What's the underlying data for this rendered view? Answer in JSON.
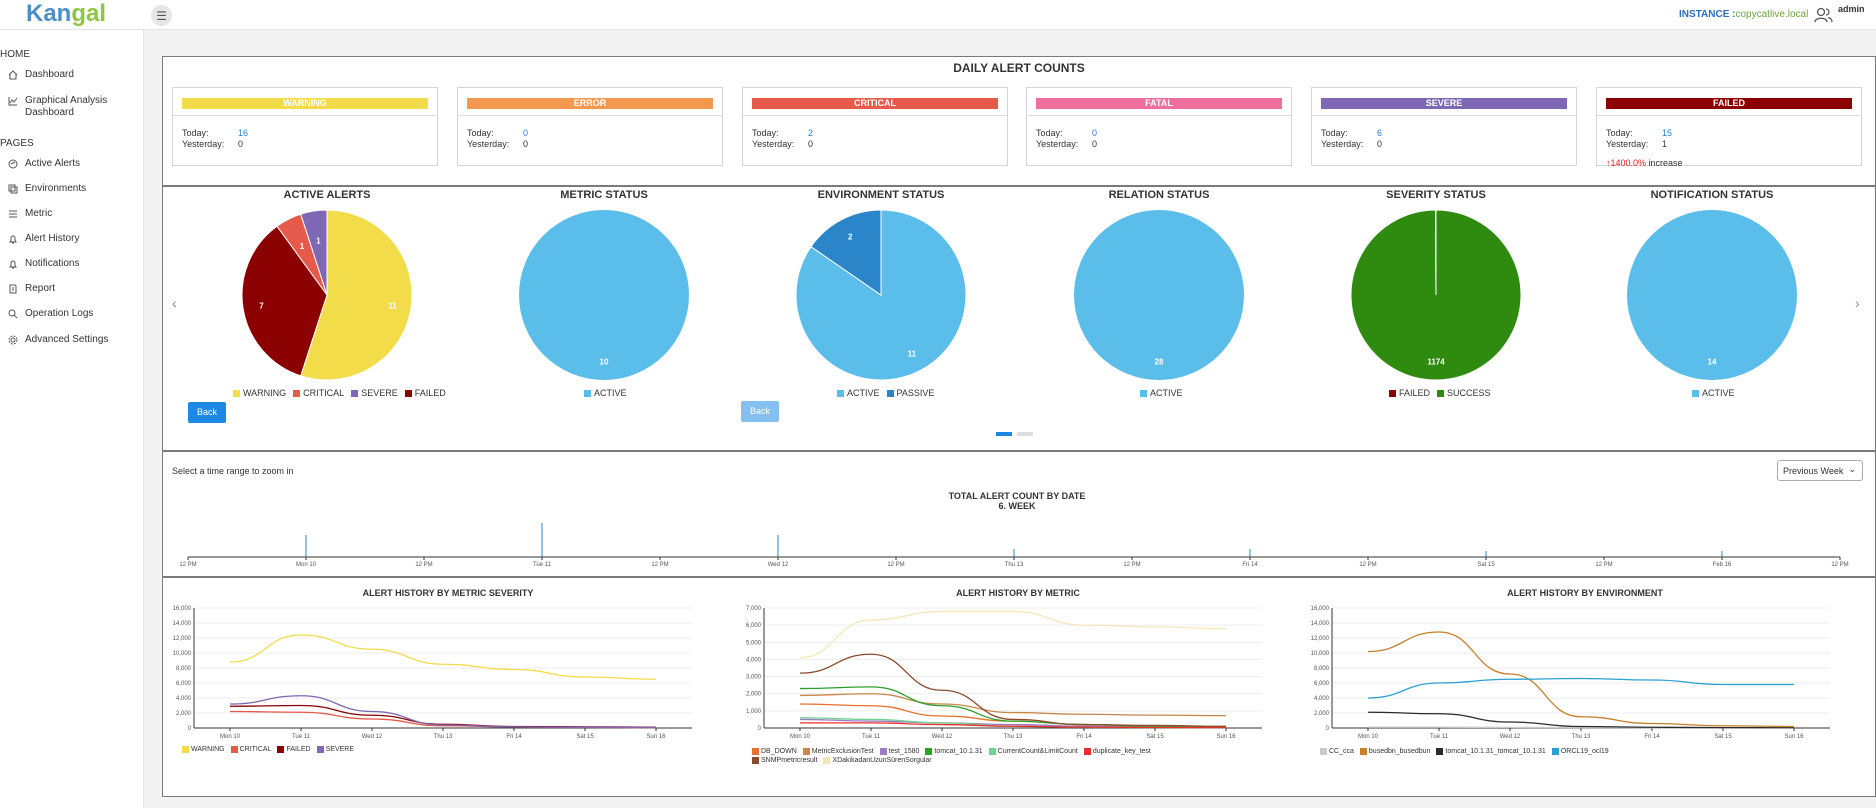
{
  "header": {
    "logo_a": "Kan",
    "logo_b": "gal",
    "instance_label": "INSTANCE :",
    "instance_value": "copycatlive.local",
    "user": "admin"
  },
  "sidebar": {
    "home_label": "HOME",
    "pages_label": "PAGES",
    "home_items": [
      {
        "label": "Dashboard",
        "icon": "home-icon"
      },
      {
        "label": "Graphical Analysis Dashboard",
        "icon": "chart-line-icon"
      }
    ],
    "page_items": [
      {
        "label": "Active Alerts",
        "icon": "alert-circle-icon"
      },
      {
        "label": "Environments",
        "icon": "server-icon"
      },
      {
        "label": "Metric",
        "icon": "metric-icon"
      },
      {
        "label": "Alert History",
        "icon": "bell-icon"
      },
      {
        "label": "Notifications",
        "icon": "notification-bell-icon"
      },
      {
        "label": "Report",
        "icon": "report-icon"
      },
      {
        "label": "Operation Logs",
        "icon": "search-icon"
      },
      {
        "label": "Advanced Settings",
        "icon": "gear-icon"
      }
    ]
  },
  "daily": {
    "title": "DAILY ALERT COUNTS",
    "today_label": "Today:",
    "yesterday_label": "Yesterday:",
    "cards": [
      {
        "name": "WARNING",
        "color": "#f3dc4a",
        "today": "16",
        "yesterday": "0"
      },
      {
        "name": "ERROR",
        "color": "#f5984f",
        "today": "0",
        "yesterday": "0"
      },
      {
        "name": "CRITICAL",
        "color": "#e55a4a",
        "today": "2",
        "yesterday": "0"
      },
      {
        "name": "FATAL",
        "color": "#f06e9c",
        "today": "0",
        "yesterday": "0"
      },
      {
        "name": "SEVERE",
        "color": "#7e68b5",
        "today": "6",
        "yesterday": "0"
      },
      {
        "name": "FAILED",
        "color": "#8b0000",
        "today": "15",
        "yesterday": "1",
        "increase_pct": "1400.0%",
        "increase_label": "increase"
      }
    ]
  },
  "status": {
    "back_label": "Back",
    "pies": [
      {
        "title": "ACTIVE ALERTS",
        "slices": [
          {
            "label": "WARNING",
            "value": 11,
            "color": "#f3dc4a"
          },
          {
            "label": "FAILED",
            "value": 7,
            "color": "#8b0000"
          },
          {
            "label": "CRITICAL",
            "value": 1,
            "color": "#e55a4a"
          },
          {
            "label": "SEVERE",
            "value": 1,
            "color": "#7e68b5"
          }
        ],
        "legend": [
          {
            "label": "WARNING",
            "color": "#f3dc4a"
          },
          {
            "label": "CRITICAL",
            "color": "#e55a4a"
          },
          {
            "label": "SEVERE",
            "color": "#7e68b5"
          },
          {
            "label": "FAILED",
            "color": "#8b0000"
          }
        ]
      },
      {
        "title": "METRIC STATUS",
        "slices": [
          {
            "label": "ACTIVE",
            "value": 10,
            "color": "#5bbdea"
          }
        ],
        "legend": [
          {
            "label": "ACTIVE",
            "color": "#5bbdea"
          }
        ]
      },
      {
        "title": "ENVIRONMENT STATUS",
        "slices": [
          {
            "label": "ACTIVE",
            "value": 11,
            "color": "#5bbdea"
          },
          {
            "label": "PASSIVE",
            "value": 2,
            "color": "#2a86c9"
          }
        ],
        "legend": [
          {
            "label": "ACTIVE",
            "color": "#5bbdea"
          },
          {
            "label": "PASSIVE",
            "color": "#2a86c9"
          }
        ]
      },
      {
        "title": "RELATION STATUS",
        "slices": [
          {
            "label": "ACTIVE",
            "value": 28,
            "color": "#5bbdea"
          }
        ],
        "legend": [
          {
            "label": "ACTIVE",
            "color": "#5bbdea"
          }
        ]
      },
      {
        "title": "SEVERITY STATUS",
        "slices": [
          {
            "label": "SUCCESS",
            "value": 1174,
            "color": "#2e8b0f"
          },
          {
            "label": "FAILED",
            "value": 1,
            "color": "#8b0000"
          }
        ],
        "legend": [
          {
            "label": "FAILED",
            "color": "#8b0000"
          },
          {
            "label": "SUCCESS",
            "color": "#2e8b0f"
          }
        ]
      },
      {
        "title": "NOTIFICATION STATUS",
        "slices": [
          {
            "label": "ACTIVE",
            "value": 14,
            "color": "#5bbdea"
          }
        ],
        "legend": [
          {
            "label": "ACTIVE",
            "color": "#5bbdea"
          }
        ]
      }
    ]
  },
  "timeline": {
    "zoom_hint": "Select a time range to zoom in",
    "range_value": "Previous Week",
    "title": "TOTAL ALERT COUNT BY DATE",
    "subtitle": "6. WEEK",
    "tick_labels": [
      "12 PM",
      "Mon 10",
      "12 PM",
      "Tue 11",
      "12 PM",
      "Wed 12",
      "12 PM",
      "Thu 13",
      "12 PM",
      "Fri 14",
      "12 PM",
      "Sat 15",
      "12 PM",
      "Feb 16",
      "12 PM"
    ],
    "spikes": [
      {
        "tick": 1,
        "value": 0.55
      },
      {
        "tick": 3,
        "value": 0.85
      },
      {
        "tick": 5,
        "value": 0.55
      },
      {
        "tick": 7,
        "value": 0.2
      },
      {
        "tick": 9,
        "value": 0.2
      },
      {
        "tick": 11,
        "value": 0.15
      },
      {
        "tick": 13,
        "value": 0.15
      }
    ]
  },
  "chart_data": [
    {
      "type": "line",
      "title": "ALERT HISTORY BY METRIC SEVERITY",
      "categories": [
        "Mon 10",
        "Tue 11",
        "Wed 12",
        "Thu 13",
        "Fri 14",
        "Sat 15",
        "Sun 16"
      ],
      "ylim": [
        0,
        16000
      ],
      "yticks": [
        "0",
        "2,000",
        "4,000",
        "6,000",
        "8,000",
        "10,000",
        "12,000",
        "14,000",
        "16,000"
      ],
      "series": [
        {
          "name": "WARNING",
          "color": "#f3dc4a",
          "values": [
            8800,
            12400,
            10500,
            8500,
            7800,
            6800,
            6500
          ]
        },
        {
          "name": "CRITICAL",
          "color": "#e55a4a",
          "values": [
            2200,
            2100,
            1200,
            300,
            150,
            80,
            50
          ]
        },
        {
          "name": "FAILED",
          "color": "#8b0000",
          "values": [
            2900,
            3000,
            1700,
            500,
            200,
            150,
            100
          ]
        },
        {
          "name": "SEVERE",
          "color": "#7e68b5",
          "values": [
            3200,
            4300,
            2200,
            400,
            150,
            80,
            50
          ]
        }
      ]
    },
    {
      "type": "line",
      "title": "ALERT HISTORY BY METRIC",
      "categories": [
        "Mon 10",
        "Tue 11",
        "Wed 12",
        "Thu 13",
        "Fri 14",
        "Sat 15",
        "Sun 16"
      ],
      "ylim": [
        0,
        7000
      ],
      "yticks": [
        "0",
        "1,000",
        "2,000",
        "3,000",
        "4,000",
        "5,000",
        "6,000",
        "7,000"
      ],
      "series": [
        {
          "name": "DB_DOWN",
          "color": "#e8702a",
          "values": [
            1400,
            1300,
            700,
            400,
            200,
            100,
            80
          ]
        },
        {
          "name": "MetricExclusionTest",
          "color": "#c9864a",
          "values": [
            1900,
            2000,
            1400,
            900,
            800,
            750,
            720
          ]
        },
        {
          "name": "test_1580",
          "color": "#9b7bc4",
          "values": [
            500,
            400,
            300,
            200,
            100,
            80,
            50
          ]
        },
        {
          "name": "tomcat_10.1.31",
          "color": "#2aa12a",
          "values": [
            2300,
            2400,
            1300,
            400,
            200,
            100,
            50
          ]
        },
        {
          "name": "CurrentCount&LimitCount",
          "color": "#6fd28f",
          "values": [
            600,
            500,
            300,
            100,
            50,
            30,
            20
          ]
        },
        {
          "name": "duplicate_key_test",
          "color": "#e8302a",
          "values": [
            300,
            300,
            200,
            100,
            50,
            30,
            20
          ]
        },
        {
          "name": "SNMPmetricresult",
          "color": "#8b4a2a",
          "values": [
            3200,
            4300,
            2200,
            500,
            200,
            150,
            100
          ]
        },
        {
          "name": "XDakikadanUzunSürenSorgular",
          "color": "#f5e6b8",
          "values": [
            4100,
            6300,
            6800,
            6800,
            6000,
            5900,
            5800
          ]
        }
      ]
    },
    {
      "type": "line",
      "title": "ALERT HISTORY BY ENVIRONMENT",
      "categories": [
        "Mon 10",
        "Tue 11",
        "Wed 12",
        "Thu 13",
        "Fri 14",
        "Sat 15",
        "Sun 16"
      ],
      "ylim": [
        0,
        16000
      ],
      "yticks": [
        "0",
        "2,000",
        "4,000",
        "6,000",
        "8,000",
        "10,000",
        "12,000",
        "14,000",
        "16,000"
      ],
      "series": [
        {
          "name": "CC_cca",
          "color": "#c9c9c9",
          "values": [
            100,
            100,
            80,
            60,
            40,
            30,
            20
          ]
        },
        {
          "name": "busedbn_busedbun",
          "color": "#c77f2a",
          "values": [
            10200,
            12800,
            7200,
            1500,
            600,
            300,
            200
          ]
        },
        {
          "name": "tomcat_10.1.31_tomcat_10.1.31",
          "color": "#2a2a2a",
          "values": [
            2100,
            1900,
            800,
            200,
            100,
            50,
            30
          ]
        },
        {
          "name": "ORCL19_ocl19",
          "color": "#2aa0d6",
          "values": [
            4000,
            6000,
            6500,
            6600,
            6400,
            5800,
            5800
          ]
        }
      ]
    }
  ]
}
